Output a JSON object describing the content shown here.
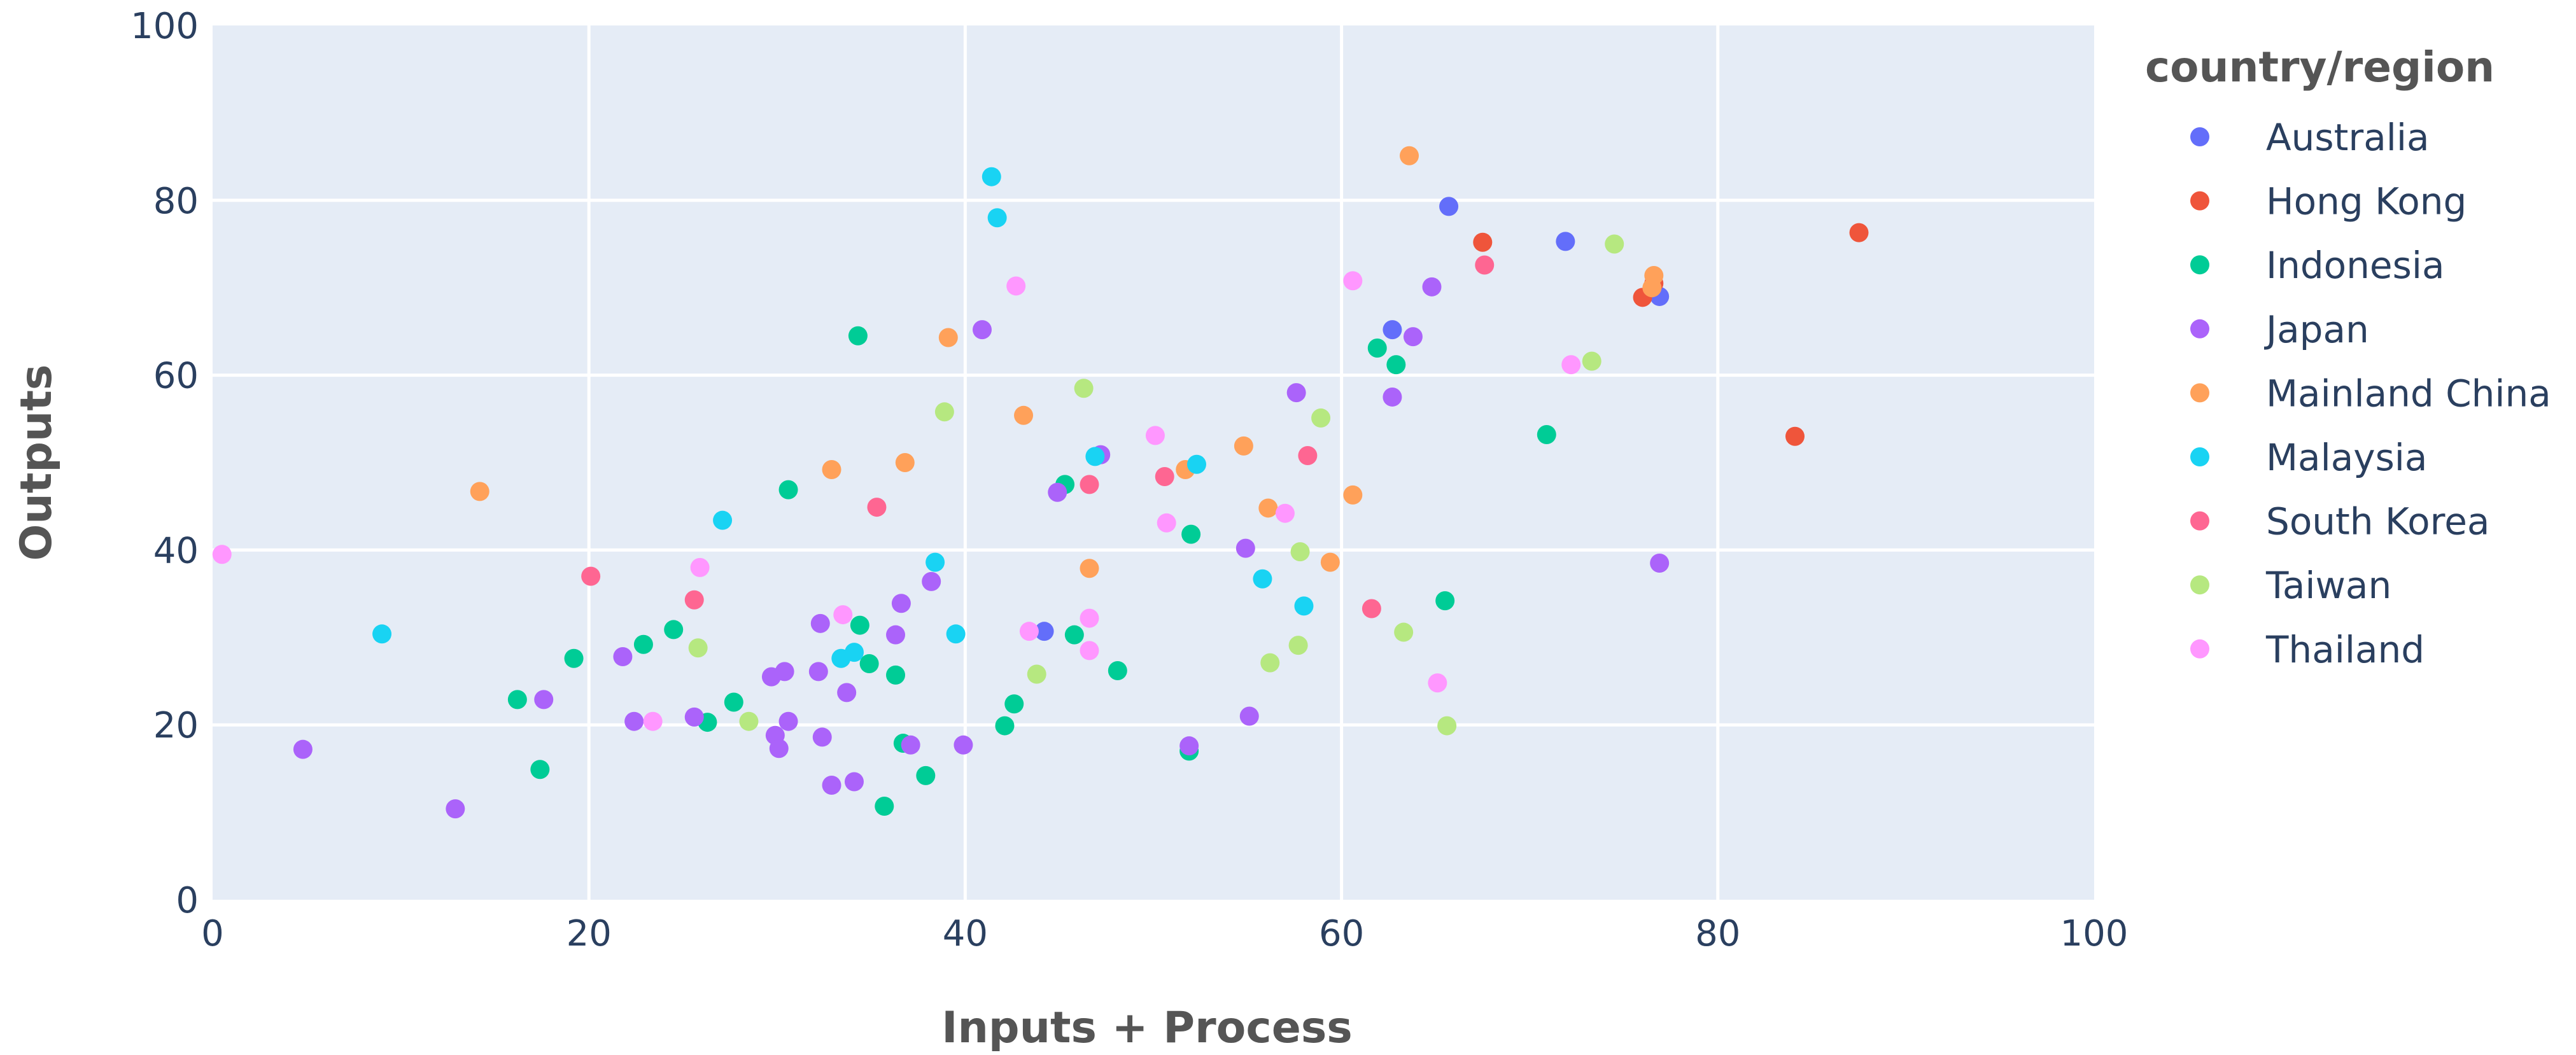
{
  "chart_data": {
    "type": "scatter",
    "xlabel": "Inputs + Process",
    "ylabel": "Outputs",
    "xlim": [
      0,
      100
    ],
    "ylim": [
      0,
      100
    ],
    "x_ticks": [
      "0",
      "20",
      "40",
      "60",
      "80",
      "100"
    ],
    "y_ticks": [
      "0",
      "20",
      "40",
      "60",
      "80",
      "100"
    ],
    "grid": true,
    "legend_title": "country/region",
    "legend_position": "right",
    "series": [
      {
        "name": "Australia",
        "color": "#636efa",
        "points": [
          [
            44.2,
            30.7
          ],
          [
            62.7,
            65.2
          ],
          [
            65.7,
            79.3
          ],
          [
            71.9,
            75.3
          ],
          [
            76.9,
            69.0
          ]
        ]
      },
      {
        "name": "Hong Kong",
        "color": "#ef553b",
        "points": [
          [
            67.5,
            75.2
          ],
          [
            76.0,
            68.9
          ],
          [
            76.6,
            70.5
          ],
          [
            84.1,
            53.0
          ],
          [
            87.5,
            76.3
          ]
        ]
      },
      {
        "name": "Indonesia",
        "color": "#00cc96",
        "points": [
          [
            16.2,
            22.9
          ],
          [
            17.4,
            14.9
          ],
          [
            19.2,
            27.6
          ],
          [
            22.9,
            29.2
          ],
          [
            24.5,
            30.9
          ],
          [
            26.3,
            20.3
          ],
          [
            27.7,
            22.6
          ],
          [
            30.6,
            46.9
          ],
          [
            34.3,
            64.5
          ],
          [
            34.4,
            31.4
          ],
          [
            34.9,
            27.0
          ],
          [
            35.7,
            10.7
          ],
          [
            36.3,
            25.7
          ],
          [
            36.7,
            17.9
          ],
          [
            37.9,
            14.2
          ],
          [
            42.1,
            19.9
          ],
          [
            42.6,
            22.4
          ],
          [
            45.3,
            47.5
          ],
          [
            45.8,
            30.3
          ],
          [
            48.1,
            26.2
          ],
          [
            51.9,
            17.0
          ],
          [
            52.0,
            41.8
          ],
          [
            61.9,
            63.1
          ],
          [
            62.9,
            61.2
          ],
          [
            65.5,
            34.2
          ],
          [
            70.9,
            53.2
          ]
        ]
      },
      {
        "name": "Japan",
        "color": "#ab63fa",
        "points": [
          [
            4.8,
            17.2
          ],
          [
            12.9,
            10.4
          ],
          [
            17.6,
            22.9
          ],
          [
            21.8,
            27.8
          ],
          [
            22.4,
            20.4
          ],
          [
            25.6,
            20.9
          ],
          [
            29.7,
            25.5
          ],
          [
            29.9,
            18.8
          ],
          [
            30.1,
            17.3
          ],
          [
            30.4,
            26.1
          ],
          [
            30.6,
            20.4
          ],
          [
            32.2,
            26.1
          ],
          [
            32.3,
            31.6
          ],
          [
            32.4,
            18.6
          ],
          [
            32.9,
            13.1
          ],
          [
            33.7,
            23.7
          ],
          [
            34.1,
            13.5
          ],
          [
            36.3,
            30.3
          ],
          [
            36.6,
            33.9
          ],
          [
            37.1,
            17.7
          ],
          [
            38.2,
            36.4
          ],
          [
            39.9,
            17.7
          ],
          [
            40.9,
            65.2
          ],
          [
            44.9,
            46.6
          ],
          [
            47.2,
            50.9
          ],
          [
            51.9,
            17.6
          ],
          [
            54.9,
            40.2
          ],
          [
            55.1,
            21.0
          ],
          [
            57.6,
            58.0
          ],
          [
            62.7,
            57.5
          ],
          [
            63.8,
            64.4
          ],
          [
            64.8,
            70.1
          ],
          [
            76.9,
            38.5
          ]
        ]
      },
      {
        "name": "Mainland China",
        "color": "#ffa15a",
        "points": [
          [
            14.2,
            46.7
          ],
          [
            32.9,
            49.2
          ],
          [
            36.8,
            50.0
          ],
          [
            39.1,
            64.3
          ],
          [
            43.1,
            55.4
          ],
          [
            46.6,
            37.9
          ],
          [
            51.7,
            49.2
          ],
          [
            54.8,
            51.9
          ],
          [
            56.1,
            44.8
          ],
          [
            59.4,
            38.6
          ],
          [
            60.6,
            46.3
          ],
          [
            63.6,
            85.1
          ],
          [
            76.5,
            70.0
          ],
          [
            76.6,
            71.4
          ]
        ]
      },
      {
        "name": "Malaysia",
        "color": "#19d3f3",
        "points": [
          [
            9.0,
            30.4
          ],
          [
            27.1,
            43.4
          ],
          [
            33.4,
            27.6
          ],
          [
            34.1,
            28.3
          ],
          [
            38.4,
            38.6
          ],
          [
            39.5,
            30.4
          ],
          [
            41.4,
            82.7
          ],
          [
            41.7,
            78.0
          ],
          [
            46.9,
            50.7
          ],
          [
            52.3,
            49.8
          ],
          [
            55.8,
            36.7
          ],
          [
            58.0,
            33.6
          ]
        ]
      },
      {
        "name": "South Korea",
        "color": "#fe6692",
        "points": [
          [
            20.1,
            37.0
          ],
          [
            25.6,
            34.3
          ],
          [
            35.3,
            44.9
          ],
          [
            46.6,
            47.5
          ],
          [
            50.6,
            48.4
          ],
          [
            58.2,
            50.8
          ],
          [
            61.6,
            33.3
          ],
          [
            67.6,
            72.6
          ]
        ]
      },
      {
        "name": "Taiwan",
        "color": "#b6e880",
        "points": [
          [
            25.8,
            28.8
          ],
          [
            28.5,
            20.4
          ],
          [
            38.9,
            55.8
          ],
          [
            43.8,
            25.8
          ],
          [
            46.3,
            58.5
          ],
          [
            56.2,
            27.1
          ],
          [
            57.7,
            29.1
          ],
          [
            57.8,
            39.8
          ],
          [
            58.9,
            55.1
          ],
          [
            63.3,
            30.6
          ],
          [
            65.6,
            19.9
          ],
          [
            73.3,
            61.6
          ],
          [
            74.5,
            75.0
          ]
        ]
      },
      {
        "name": "Thailand",
        "color": "#ff97ff",
        "points": [
          [
            0.5,
            39.5
          ],
          [
            23.4,
            20.4
          ],
          [
            25.9,
            38.0
          ],
          [
            33.5,
            32.6
          ],
          [
            42.7,
            70.2
          ],
          [
            43.4,
            30.7
          ],
          [
            46.6,
            32.2
          ],
          [
            46.6,
            28.5
          ],
          [
            50.1,
            53.1
          ],
          [
            50.7,
            43.1
          ],
          [
            57.0,
            44.2
          ],
          [
            60.6,
            70.8
          ],
          [
            65.1,
            24.8
          ],
          [
            72.2,
            61.2
          ]
        ]
      }
    ]
  }
}
